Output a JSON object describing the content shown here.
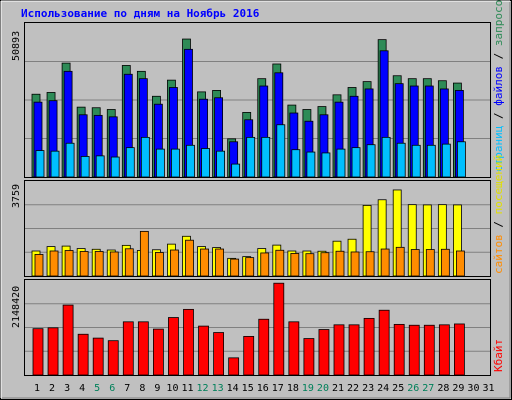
{
  "chart_data": [
    {
      "type": "bar",
      "title": "Использование по дням на Ноябрь 2016",
      "y_max_label": "50893",
      "ylim": [
        0,
        50893
      ],
      "categories": [
        "1",
        "2",
        "3",
        "4",
        "5",
        "6",
        "7",
        "8",
        "9",
        "10",
        "11",
        "12",
        "13",
        "14",
        "15",
        "16",
        "17",
        "18",
        "19",
        "20",
        "21",
        "22",
        "23",
        "24",
        "25",
        "26",
        "27",
        "28",
        "29",
        "30",
        "31"
      ],
      "weekend_days": [
        "5",
        "6",
        "12",
        "13",
        "19",
        "20",
        "26",
        "27"
      ],
      "series": [
        {
          "name": "запросов",
          "color": "#2e8b57",
          "values": [
            28200,
            28800,
            38800,
            23800,
            23600,
            23000,
            38000,
            36000,
            27500,
            33000,
            47000,
            29000,
            29500,
            13000,
            22000,
            33500,
            38500,
            24500,
            23000,
            24000,
            28000,
            30500,
            32500,
            46800,
            34500,
            33500,
            33500,
            32800,
            32000,
            0,
            0
          ]
        },
        {
          "name": "файлов",
          "color": "#0000ff",
          "values": [
            25500,
            26000,
            36000,
            21200,
            21000,
            20500,
            35000,
            33500,
            24800,
            30500,
            43500,
            26500,
            27000,
            12000,
            19500,
            31000,
            35500,
            21800,
            19000,
            21200,
            25500,
            27500,
            30000,
            43000,
            31800,
            31000,
            31000,
            30000,
            29500,
            0,
            0
          ]
        },
        {
          "name": "страниц",
          "color": "#00bfff",
          "values": [
            9000,
            8800,
            11500,
            7000,
            7200,
            6800,
            10000,
            13500,
            9500,
            9500,
            10800,
            9700,
            8800,
            4400,
            13500,
            13500,
            17800,
            9300,
            8500,
            8200,
            9500,
            10000,
            11000,
            13500,
            11500,
            10800,
            10800,
            11200,
            12000,
            0,
            0
          ]
        }
      ]
    },
    {
      "type": "bar",
      "y_max_label": "3759",
      "ylim": [
        0,
        3759
      ],
      "categories": [
        "1",
        "2",
        "3",
        "4",
        "5",
        "6",
        "7",
        "8",
        "9",
        "10",
        "11",
        "12",
        "13",
        "14",
        "15",
        "16",
        "17",
        "18",
        "19",
        "20",
        "21",
        "22",
        "23",
        "24",
        "25",
        "26",
        "27",
        "28",
        "29",
        "30",
        "31"
      ],
      "series": [
        {
          "name": "посещений",
          "color": "#ffff00",
          "values": [
            1020,
            1200,
            1220,
            1120,
            1090,
            1060,
            1250,
            1040,
            1070,
            1300,
            1620,
            1200,
            1160,
            720,
            790,
            1120,
            1260,
            1020,
            1020,
            1010,
            1420,
            1500,
            2880,
            3110,
            3510,
            2910,
            2900,
            2910,
            2900,
            0,
            0
          ]
        },
        {
          "name": "сайтов",
          "color": "#ff8c00",
          "values": [
            880,
            1020,
            1040,
            1000,
            1000,
            980,
            1110,
            1820,
            960,
            1060,
            1460,
            1100,
            1100,
            690,
            750,
            940,
            1050,
            920,
            910,
            950,
            1010,
            980,
            990,
            1100,
            1170,
            1080,
            1080,
            1090,
            1020,
            0,
            0
          ]
        }
      ]
    },
    {
      "type": "bar",
      "y_max_label": "2148420",
      "ylim": [
        0,
        2148420
      ],
      "categories": [
        "1",
        "2",
        "3",
        "4",
        "5",
        "6",
        "7",
        "8",
        "9",
        "10",
        "11",
        "12",
        "13",
        "14",
        "15",
        "16",
        "17",
        "18",
        "19",
        "20",
        "21",
        "22",
        "23",
        "24",
        "25",
        "26",
        "27",
        "28",
        "29",
        "30",
        "31"
      ],
      "series": [
        {
          "name": "Кбайт",
          "color": "#ff0000",
          "values": [
            1080000,
            1100000,
            1630000,
            950000,
            860000,
            800000,
            1240000,
            1240000,
            1070000,
            1340000,
            1530000,
            1140000,
            990000,
            400000,
            900000,
            1300000,
            2140000,
            1240000,
            850000,
            1060000,
            1170000,
            1170000,
            1320000,
            1510000,
            1180000,
            1160000,
            1160000,
            1170000,
            1190000,
            0,
            0
          ]
        }
      ]
    }
  ]
}
